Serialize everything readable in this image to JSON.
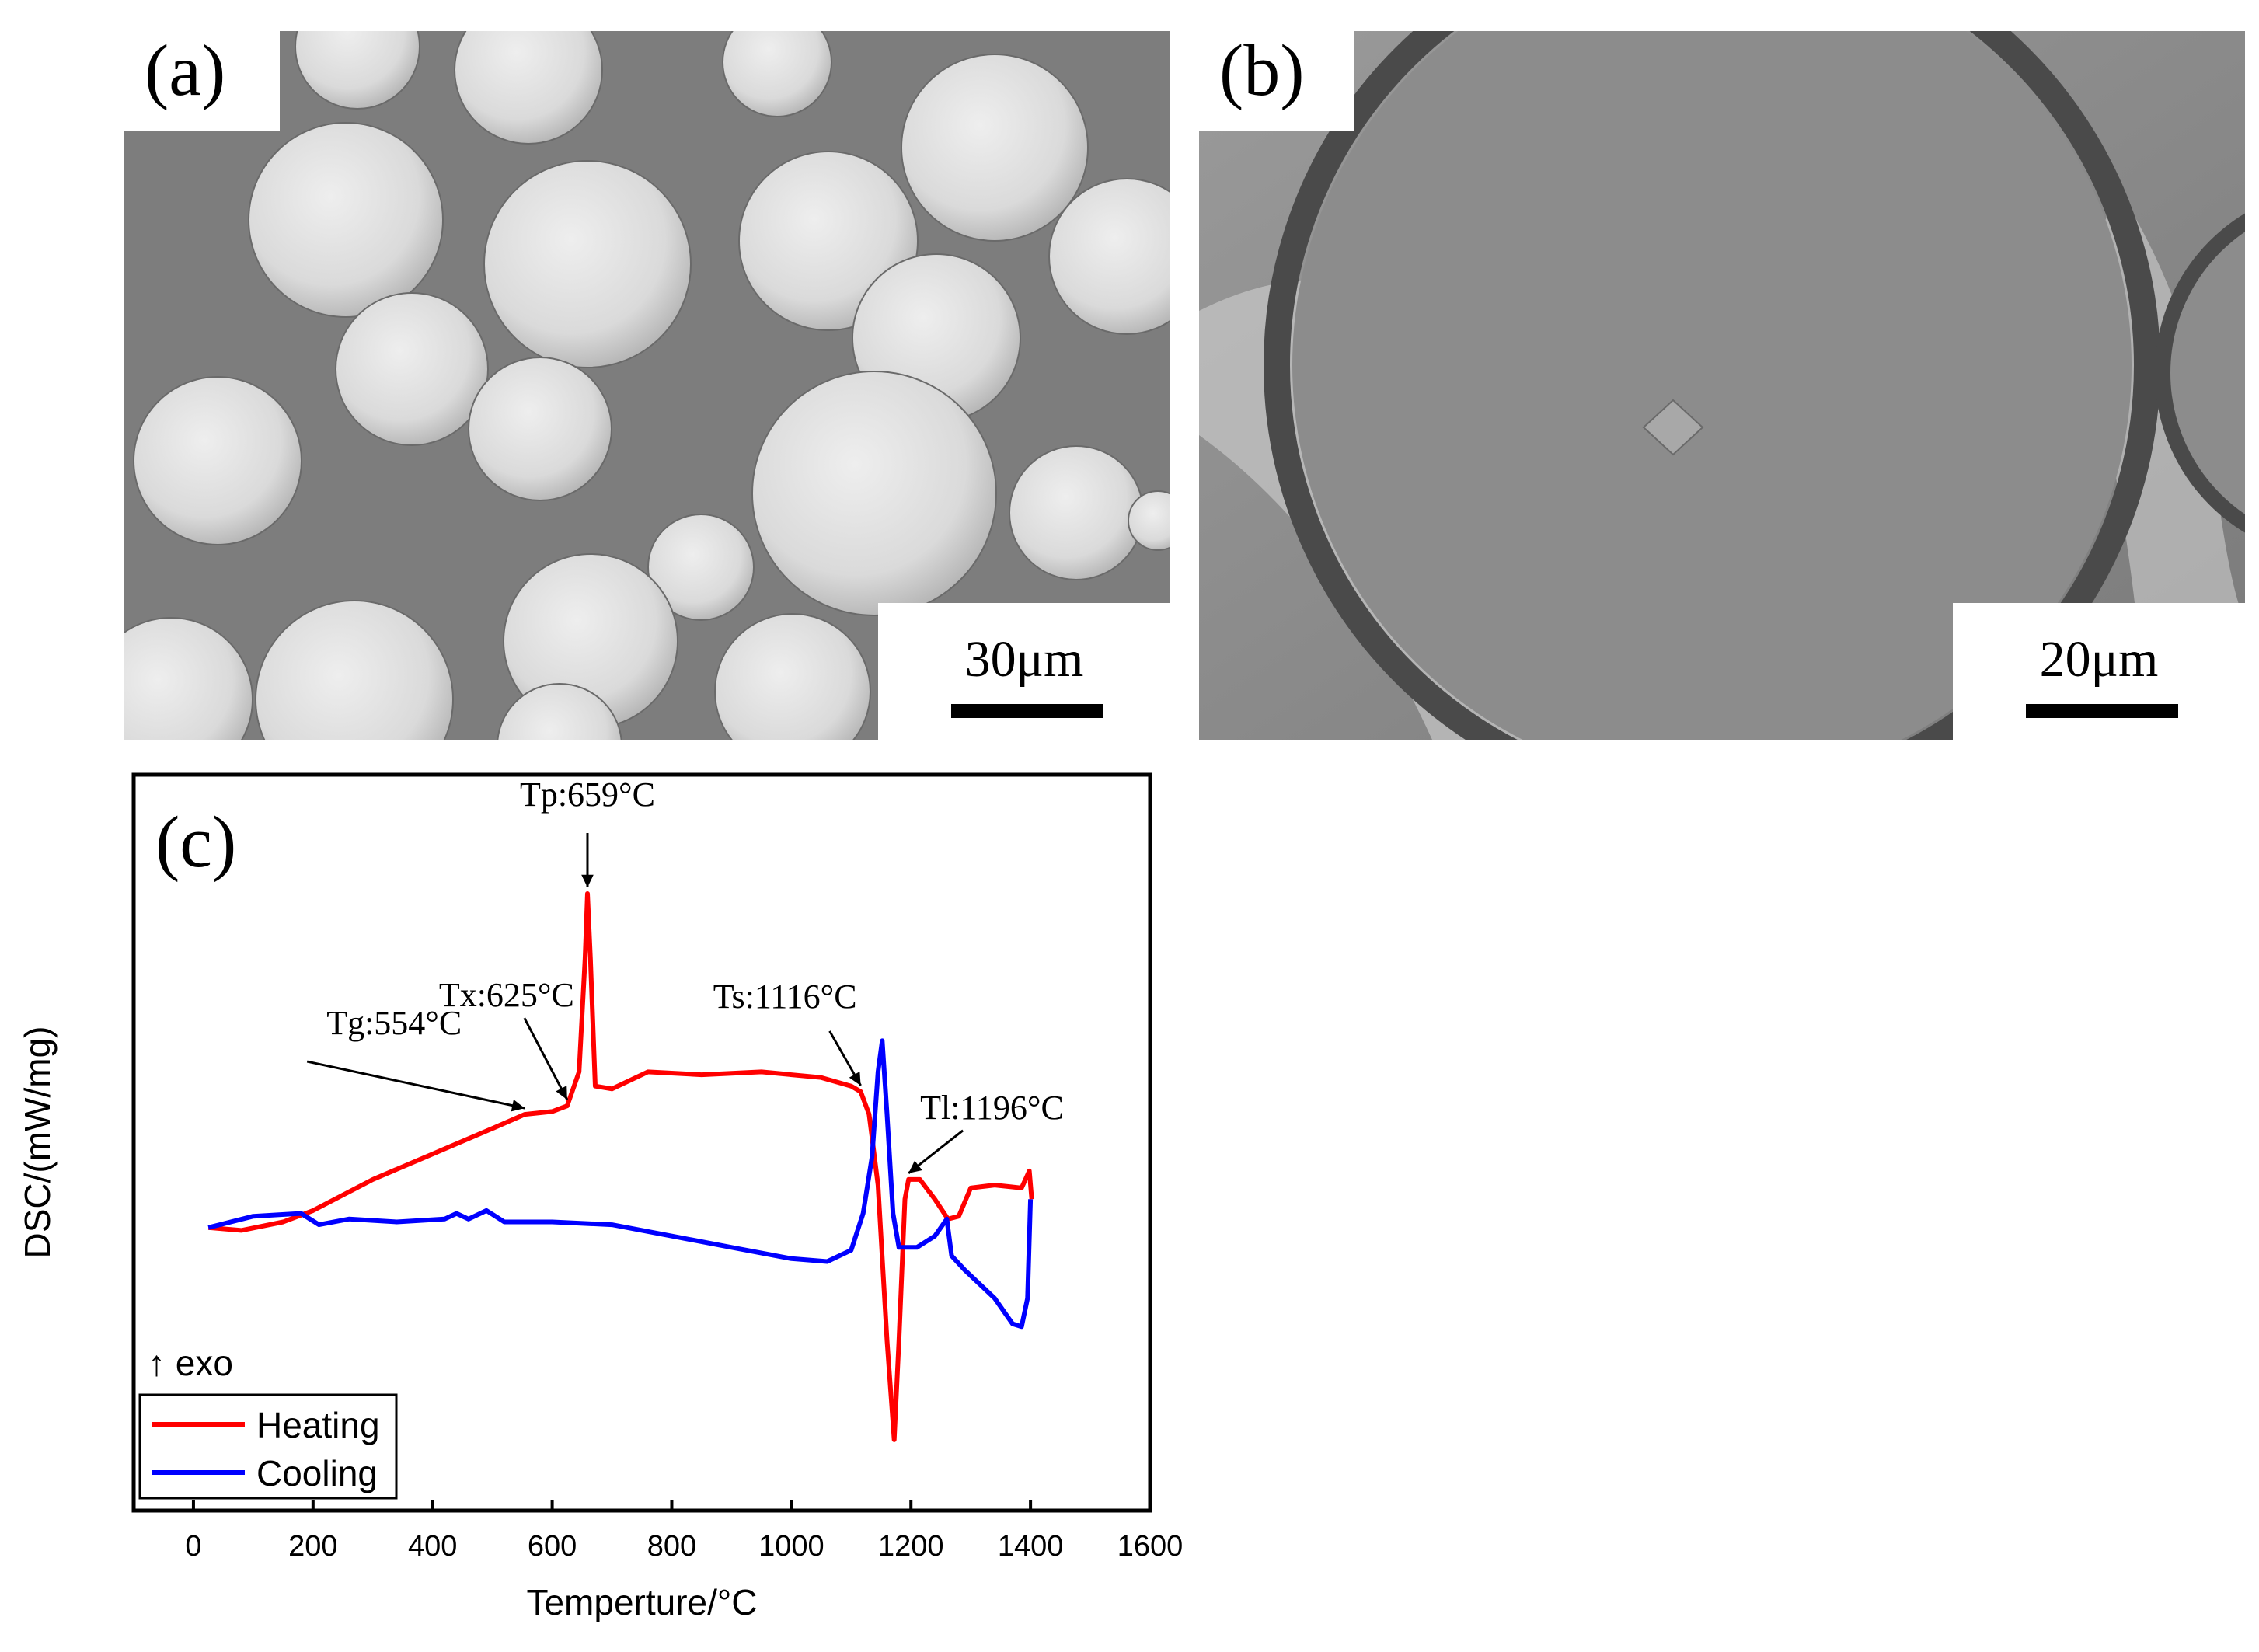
{
  "panels": {
    "a": {
      "label": "(a)",
      "scale_label": "30μm"
    },
    "b": {
      "label": "(b)",
      "scale_label": "20μm"
    }
  },
  "chart_data": {
    "type": "line",
    "panel_label": "(c)",
    "title": "",
    "xlabel": "Temperture/°C",
    "ylabel": "DSC/(mW/mg)",
    "xlim": [
      -100,
      1600
    ],
    "x_ticks": [
      0,
      200,
      400,
      600,
      800,
      1000,
      1200,
      1400,
      1600
    ],
    "ylim": [
      -1.0,
      1.6
    ],
    "y_ticks_shown": false,
    "exo_marker": "↑ exo",
    "legend_position": "bottom-left",
    "series": [
      {
        "name": "Heating",
        "color": "#ff0000",
        "points": [
          [
            25,
            0.0
          ],
          [
            80,
            -0.01
          ],
          [
            150,
            0.02
          ],
          [
            200,
            0.06
          ],
          [
            300,
            0.17
          ],
          [
            400,
            0.26
          ],
          [
            500,
            0.35
          ],
          [
            554,
            0.4
          ],
          [
            600,
            0.41
          ],
          [
            625,
            0.43
          ],
          [
            645,
            0.55
          ],
          [
            655,
            0.95
          ],
          [
            659,
            1.18
          ],
          [
            664,
            0.95
          ],
          [
            672,
            0.5
          ],
          [
            700,
            0.49
          ],
          [
            760,
            0.55
          ],
          [
            850,
            0.54
          ],
          [
            950,
            0.55
          ],
          [
            1050,
            0.53
          ],
          [
            1100,
            0.5
          ],
          [
            1116,
            0.48
          ],
          [
            1130,
            0.4
          ],
          [
            1145,
            0.15
          ],
          [
            1160,
            -0.4
          ],
          [
            1172,
            -0.75
          ],
          [
            1180,
            -0.4
          ],
          [
            1190,
            0.1
          ],
          [
            1196,
            0.17
          ],
          [
            1215,
            0.17
          ],
          [
            1240,
            0.1
          ],
          [
            1262,
            0.03
          ],
          [
            1280,
            0.04
          ],
          [
            1300,
            0.14
          ],
          [
            1340,
            0.15
          ],
          [
            1385,
            0.14
          ],
          [
            1398,
            0.2
          ],
          [
            1402,
            0.1
          ]
        ]
      },
      {
        "name": "Cooling",
        "color": "#0000ff",
        "points": [
          [
            25,
            0.0
          ],
          [
            100,
            0.04
          ],
          [
            180,
            0.05
          ],
          [
            210,
            0.01
          ],
          [
            260,
            0.03
          ],
          [
            340,
            0.02
          ],
          [
            420,
            0.03
          ],
          [
            440,
            0.05
          ],
          [
            460,
            0.03
          ],
          [
            490,
            0.06
          ],
          [
            520,
            0.02
          ],
          [
            600,
            0.02
          ],
          [
            700,
            0.01
          ],
          [
            800,
            -0.03
          ],
          [
            900,
            -0.07
          ],
          [
            1000,
            -0.11
          ],
          [
            1060,
            -0.12
          ],
          [
            1100,
            -0.08
          ],
          [
            1120,
            0.05
          ],
          [
            1135,
            0.25
          ],
          [
            1145,
            0.55
          ],
          [
            1152,
            0.66
          ],
          [
            1160,
            0.4
          ],
          [
            1170,
            0.05
          ],
          [
            1180,
            -0.07
          ],
          [
            1210,
            -0.07
          ],
          [
            1240,
            -0.03
          ],
          [
            1260,
            0.03
          ],
          [
            1268,
            -0.1
          ],
          [
            1290,
            -0.15
          ],
          [
            1340,
            -0.25
          ],
          [
            1370,
            -0.34
          ],
          [
            1385,
            -0.35
          ],
          [
            1395,
            -0.25
          ],
          [
            1400,
            0.1
          ]
        ]
      }
    ],
    "annotations": [
      {
        "text": "Tg:554°C",
        "x": 554,
        "y": 0.4
      },
      {
        "text": "Tx:625°C",
        "x": 625,
        "y": 0.43
      },
      {
        "text": "Tp:659°C",
        "x": 659,
        "y": 1.18
      },
      {
        "text": "Ts:1116°C",
        "x": 1116,
        "y": 0.48
      },
      {
        "text": "Tl:1196°C",
        "x": 1196,
        "y": 0.17
      }
    ]
  }
}
